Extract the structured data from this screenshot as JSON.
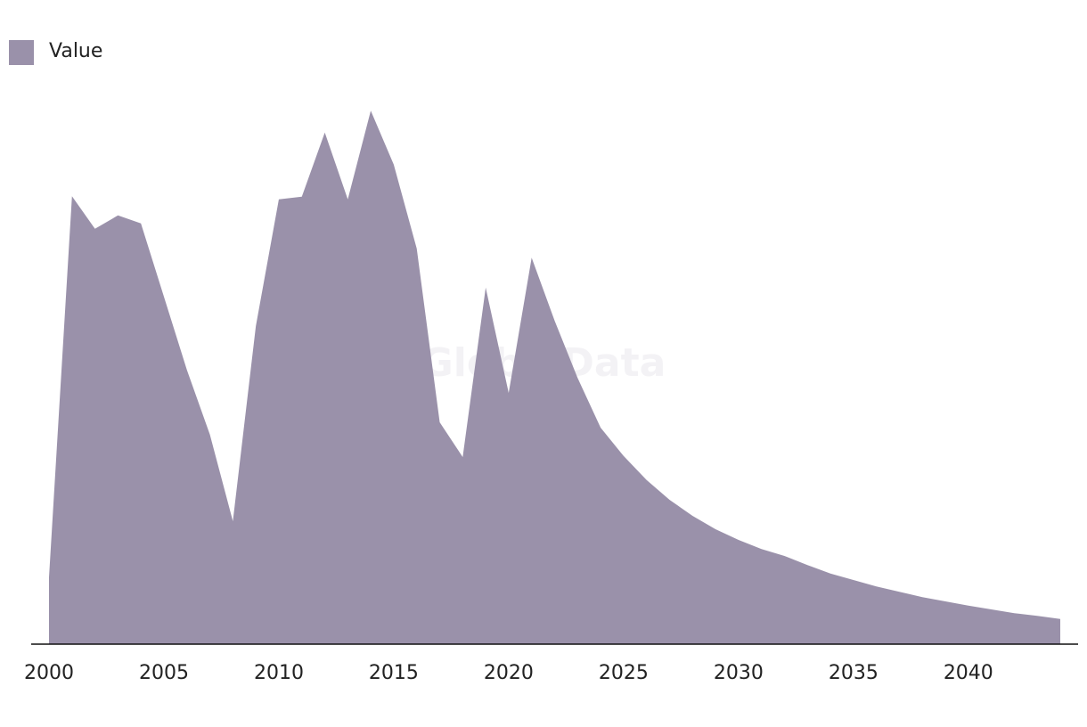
{
  "chart_data": {
    "type": "area",
    "watermark": "GlobalData",
    "legend": "top-left",
    "x": [
      2000,
      2001,
      2002,
      2003,
      2004,
      2005,
      2006,
      2007,
      2008,
      2009,
      2010,
      2011,
      2012,
      2013,
      2014,
      2015,
      2016,
      2017,
      2018,
      2019,
      2020,
      2021,
      2022,
      2023,
      2024,
      2025,
      2026,
      2027,
      2028,
      2029,
      2030,
      2031,
      2032,
      2033,
      2034,
      2035,
      2036,
      2037,
      2038,
      2039,
      2040,
      2041,
      2042,
      2043,
      2044
    ],
    "series": [
      {
        "name": "Value",
        "color": "#9a91aa",
        "values": [
          12.5,
          83.8,
          77.7,
          80.2,
          78.7,
          65,
          51.3,
          39.2,
          23,
          59.5,
          83.2,
          83.7,
          95.7,
          83.2,
          99.8,
          89.7,
          74,
          41.5,
          35,
          66.7,
          47,
          72.3,
          60.5,
          49.8,
          40.5,
          35.2,
          30.7,
          27,
          24,
          21.5,
          19.5,
          17.8,
          16.5,
          14.8,
          13.2,
          12,
          10.8,
          9.8,
          8.8,
          8,
          7.2,
          6.5,
          5.8,
          5.3,
          4.7
        ]
      }
    ],
    "xlim": [
      2000,
      2044
    ],
    "xticks": [
      2000,
      2005,
      2010,
      2015,
      2020,
      2025,
      2030,
      2035,
      2040
    ],
    "ylim": [
      0,
      110
    ]
  }
}
